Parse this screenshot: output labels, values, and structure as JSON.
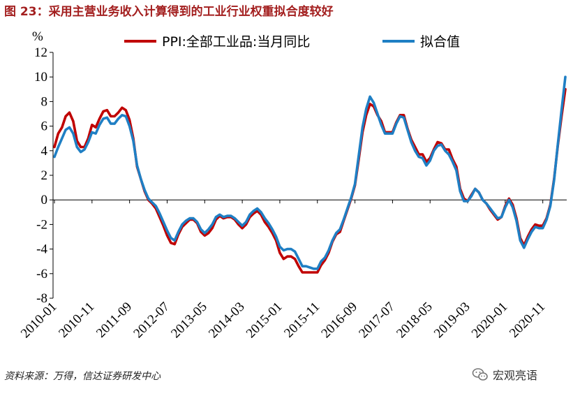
{
  "title": "图 23：采用主营业务收入计算得到的工业行业权重拟合度较好",
  "source": "资料来源：万得，信达证券研发中心",
  "watermark": "宏观亮语",
  "chart_data": {
    "type": "line",
    "yunit": "%",
    "ylim": [
      -8,
      12
    ],
    "yticks": [
      12,
      10,
      8,
      6,
      4,
      2,
      0,
      -2,
      -4,
      -6,
      -8
    ],
    "xstart": "2010-01",
    "xticks": [
      "2010-01",
      "2010-11",
      "2011-09",
      "2012-07",
      "2013-05",
      "2014-03",
      "2015-01",
      "2015-11",
      "2016-09",
      "2017-07",
      "2018-05",
      "2019-03",
      "2020-01",
      "2020-11"
    ],
    "legend_position": "top",
    "grid": false,
    "series": [
      {
        "name": "PPI:全部工业品:当月同比",
        "color": "#c00000",
        "values": [
          4.3,
          5.4,
          5.9,
          6.8,
          7.1,
          6.4,
          4.8,
          4.3,
          4.3,
          5.0,
          6.1,
          5.9,
          6.6,
          7.2,
          7.3,
          6.8,
          6.8,
          7.1,
          7.5,
          7.3,
          6.5,
          5.0,
          2.7,
          1.7,
          0.7,
          0.0,
          -0.3,
          -0.7,
          -1.4,
          -2.1,
          -2.9,
          -3.5,
          -3.6,
          -2.8,
          -2.2,
          -1.9,
          -1.6,
          -1.6,
          -1.9,
          -2.6,
          -2.9,
          -2.7,
          -2.3,
          -1.6,
          -1.3,
          -1.5,
          -1.4,
          -1.4,
          -1.6,
          -2.0,
          -2.3,
          -2.0,
          -1.4,
          -1.1,
          -0.9,
          -1.2,
          -1.8,
          -2.2,
          -2.7,
          -3.3,
          -4.3,
          -4.8,
          -4.6,
          -4.6,
          -4.8,
          -5.4,
          -5.9,
          -5.9,
          -5.9,
          -5.9,
          -5.9,
          -5.3,
          -4.9,
          -4.3,
          -3.4,
          -2.8,
          -2.6,
          -1.7,
          -0.8,
          0.1,
          1.2,
          3.3,
          5.5,
          6.9,
          7.8,
          7.6,
          6.9,
          6.4,
          5.5,
          5.5,
          5.5,
          6.3,
          6.9,
          6.9,
          5.8,
          4.9,
          4.3,
          3.7,
          3.7,
          3.1,
          3.4,
          4.1,
          4.7,
          4.6,
          4.1,
          4.1,
          3.3,
          2.7,
          0.9,
          0.1,
          -0.1,
          0.4,
          0.9,
          0.6,
          0.0,
          -0.3,
          -0.8,
          -1.2,
          -1.6,
          -1.4,
          -0.5,
          0.1,
          -0.4,
          -1.5,
          -3.1,
          -3.7,
          -3.0,
          -2.4,
          -2.0,
          -2.1,
          -2.1,
          -1.5,
          -0.4,
          1.7,
          4.4,
          6.8,
          9.0
        ]
      },
      {
        "name": "拟合值",
        "color": "#1f7fc4",
        "values": [
          3.5,
          4.3,
          5.0,
          5.7,
          5.9,
          5.4,
          4.3,
          3.9,
          4.1,
          4.7,
          5.5,
          5.4,
          6.1,
          6.6,
          6.7,
          6.2,
          6.2,
          6.6,
          6.9,
          6.8,
          6.0,
          4.8,
          2.8,
          1.7,
          0.8,
          0.1,
          -0.2,
          -0.5,
          -1.1,
          -1.8,
          -2.5,
          -3.1,
          -3.3,
          -2.6,
          -2.0,
          -1.7,
          -1.5,
          -1.5,
          -1.8,
          -2.4,
          -2.7,
          -2.4,
          -2.0,
          -1.4,
          -1.2,
          -1.4,
          -1.3,
          -1.3,
          -1.5,
          -1.8,
          -2.1,
          -1.8,
          -1.2,
          -0.9,
          -0.7,
          -1.0,
          -1.5,
          -1.9,
          -2.4,
          -3.0,
          -3.8,
          -4.1,
          -4.0,
          -4.0,
          -4.2,
          -4.8,
          -5.4,
          -5.4,
          -5.5,
          -5.6,
          -5.6,
          -5.0,
          -4.7,
          -4.1,
          -3.3,
          -2.7,
          -2.4,
          -1.6,
          -0.7,
          0.2,
          1.3,
          3.6,
          5.9,
          7.4,
          8.4,
          7.9,
          7.0,
          6.1,
          5.4,
          5.4,
          5.4,
          6.2,
          6.8,
          6.7,
          5.7,
          4.7,
          4.0,
          3.5,
          3.4,
          2.8,
          3.2,
          4.0,
          4.4,
          4.5,
          4.0,
          3.7,
          3.1,
          2.4,
          0.7,
          -0.1,
          -0.1,
          0.3,
          0.9,
          0.6,
          0.0,
          -0.3,
          -0.7,
          -1.1,
          -1.5,
          -1.4,
          -0.6,
          0.0,
          -0.6,
          -1.7,
          -3.3,
          -3.9,
          -3.2,
          -2.6,
          -2.2,
          -2.3,
          -2.3,
          -1.6,
          -0.5,
          1.6,
          4.5,
          7.3,
          10.0
        ]
      }
    ]
  }
}
